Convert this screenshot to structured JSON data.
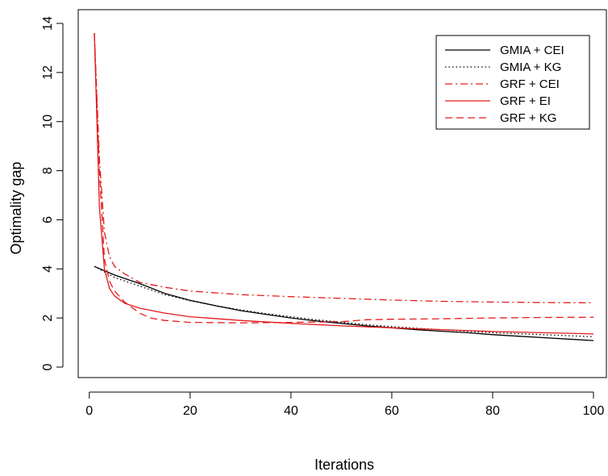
{
  "chart_data": {
    "type": "line",
    "title": "",
    "xlabel": "Iterations",
    "ylabel": "Optimality gap",
    "xlim": [
      1,
      100
    ],
    "ylim": [
      0,
      14
    ],
    "xticks": [
      0,
      20,
      40,
      60,
      80,
      100
    ],
    "yticks": [
      0,
      2,
      4,
      6,
      8,
      10,
      12,
      14
    ],
    "grid": false,
    "legend_position": "top-right",
    "series": [
      {
        "name": "GMIA + CEI",
        "color": "#000000",
        "dash": "solid",
        "x": [
          1,
          5,
          10,
          15,
          20,
          25,
          30,
          35,
          40,
          45,
          50,
          55,
          60,
          65,
          70,
          75,
          80,
          85,
          90,
          95,
          100
        ],
        "y": [
          4.1,
          3.75,
          3.4,
          3.0,
          2.72,
          2.5,
          2.3,
          2.15,
          2.0,
          1.88,
          1.78,
          1.68,
          1.6,
          1.52,
          1.46,
          1.4,
          1.32,
          1.26,
          1.2,
          1.14,
          1.08
        ]
      },
      {
        "name": "GMIA + KG",
        "color": "#000000",
        "dash": "dotted",
        "x": [
          1,
          5,
          10,
          15,
          20,
          25,
          30,
          35,
          40,
          45,
          50,
          55,
          60,
          65,
          70,
          75,
          80,
          85,
          90,
          95,
          100
        ],
        "y": [
          4.1,
          3.65,
          3.3,
          2.95,
          2.7,
          2.5,
          2.33,
          2.18,
          2.05,
          1.93,
          1.83,
          1.73,
          1.65,
          1.58,
          1.52,
          1.46,
          1.4,
          1.36,
          1.32,
          1.28,
          1.24
        ]
      },
      {
        "name": "GRF + CEI",
        "color": "#e41a1c",
        "dash": "dashdot",
        "x": [
          1,
          2,
          3,
          4,
          5,
          7,
          10,
          15,
          20,
          30,
          40,
          50,
          60,
          70,
          80,
          90,
          100
        ],
        "y": [
          13.6,
          8.5,
          5.5,
          4.5,
          4.1,
          3.8,
          3.45,
          3.25,
          3.1,
          2.95,
          2.87,
          2.8,
          2.73,
          2.68,
          2.65,
          2.63,
          2.62
        ]
      },
      {
        "name": "GRF + EI",
        "color": "#e41a1c",
        "dash": "solid",
        "x": [
          1,
          2,
          3,
          4,
          5,
          7,
          10,
          15,
          20,
          30,
          40,
          50,
          60,
          70,
          80,
          90,
          100
        ],
        "y": [
          13.6,
          6.5,
          4.0,
          3.2,
          2.9,
          2.6,
          2.4,
          2.2,
          2.05,
          1.9,
          1.78,
          1.68,
          1.6,
          1.52,
          1.45,
          1.4,
          1.35
        ]
      },
      {
        "name": "GRF + KG",
        "color": "#e41a1c",
        "dash": "dashed",
        "x": [
          1,
          2,
          3,
          4,
          5,
          7,
          10,
          12,
          15,
          20,
          30,
          40,
          50,
          55,
          60,
          70,
          80,
          90,
          100
        ],
        "y": [
          13.6,
          8.0,
          4.4,
          3.5,
          3.1,
          2.65,
          2.2,
          2.0,
          1.9,
          1.82,
          1.8,
          1.82,
          1.85,
          1.93,
          1.95,
          1.97,
          2.0,
          2.02,
          2.03
        ]
      }
    ]
  }
}
